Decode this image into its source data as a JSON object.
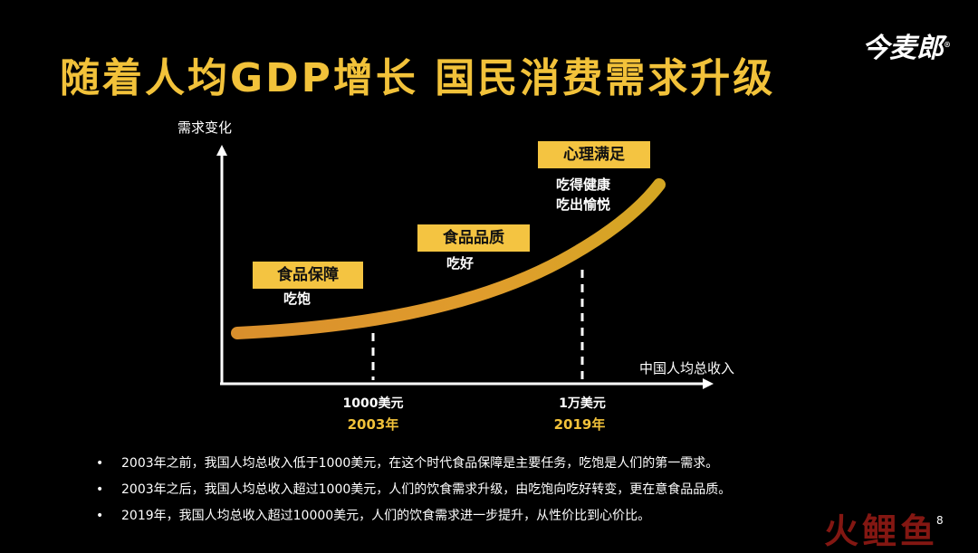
{
  "slide": {
    "title": "随着人均GDP增长 国民消费需求升级",
    "logo": "今麦郎",
    "logo_mark": "®",
    "page_number": "8",
    "watermark": "火鲤鱼"
  },
  "diagram": {
    "y_axis_label": "需求变化",
    "x_axis_label": "中国人均总收入",
    "stages": [
      {
        "name": "食品保障",
        "desc": [
          "吃饱"
        ]
      },
      {
        "name": "食品品质",
        "desc": [
          "吃好"
        ]
      },
      {
        "name": "心理满足",
        "desc": [
          "吃得健康",
          "吃出愉悦"
        ]
      }
    ],
    "milestones": [
      {
        "income": "1000美元",
        "year": "2003年"
      },
      {
        "income": "1万美元",
        "year": "2019年"
      }
    ]
  },
  "notes": [
    "2003年之前，我国人均总收入低于1000美元，在这个时代食品保障是主要任务，吃饱是人们的第一需求。",
    "2003年之后，我国人均总收入超过1000美元，人们的饮食需求升级，由吃饱向吃好转变，更在意食品品质。",
    "2019年，我国人均总收入超过10000美元，人们的饮食需求进一步提升，从性价比到心价比。"
  ],
  "colors": {
    "accent": "#f2c23a",
    "box": "#f4c441",
    "curve_start": "#d98f2c",
    "curve_end": "#e8b12a"
  }
}
